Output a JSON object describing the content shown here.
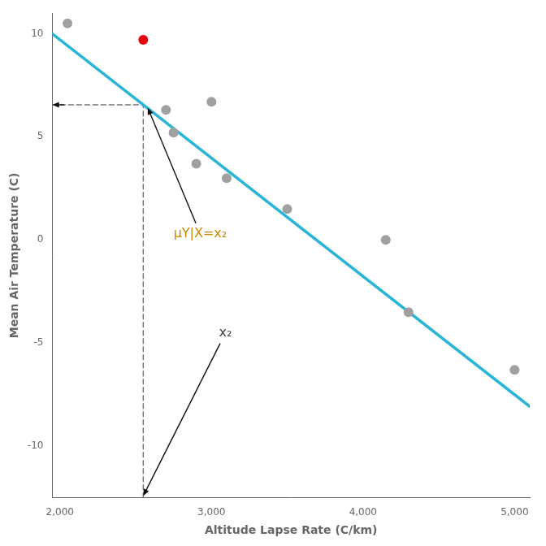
{
  "chart_data": {
    "type": "scatter",
    "xlabel": "Altitude Lapse Rate (C/km)",
    "ylabel": "Mean Air Temperature (C)",
    "xlim": [
      1950,
      5100
    ],
    "ylim": [
      -12.5,
      11.0
    ],
    "xticks": [
      2000,
      3000,
      4000,
      5000
    ],
    "yticks": [
      -10,
      -5,
      0,
      5,
      10
    ],
    "grid": false,
    "series": [
      {
        "type": "scatter",
        "x": [
          2050,
          2550,
          2700,
          2750,
          2900,
          3000,
          3100,
          3500,
          4150,
          4300,
          5000
        ],
        "values": [
          10.5,
          9.7,
          6.3,
          5.2,
          3.7,
          6.7,
          3.0,
          1.5,
          0.0,
          -3.5,
          -6.3
        ],
        "colors": [
          "#a0a0a0",
          "#e8000d",
          "#a0a0a0",
          "#a0a0a0",
          "#a0a0a0",
          "#a0a0a0",
          "#a0a0a0",
          "#a0a0a0",
          "#a0a0a0",
          "#a0a0a0",
          "#a0a0a0"
        ]
      },
      {
        "type": "line",
        "line_style": "solid",
        "color": "#29b6d6",
        "x": [
          1950,
          5100
        ],
        "values": [
          9.99065,
          -8.0683
        ]
      },
      {
        "type": "line",
        "line_style": "dashed",
        "color": "#777777",
        "x": [
          2550,
          2550
        ],
        "values": [
          -12.5,
          6.55085
        ]
      },
      {
        "type": "line",
        "line_style": "dashed",
        "color": "#777777",
        "x": [
          1950,
          2550
        ],
        "values": [
          6.55085,
          6.55085
        ]
      }
    ],
    "annotations": [
      {
        "text": "μY|X=x₂",
        "x": 2750,
        "y": 0.3,
        "color": "#cc8800",
        "arrow_x": 2580,
        "arrow_y": 6.40085,
        "arrow_color": "#111111"
      },
      {
        "text": "x₂",
        "x": 3050,
        "y": -4.5,
        "color": "#444444",
        "arrow_x": 2550,
        "arrow_y": -12.4,
        "arrow_color": "#111111"
      }
    ],
    "arrows": [
      {
        "x": 2030,
        "y": 6.55085,
        "to_x": 1950,
        "to_y": 6.55085,
        "color": "#111111"
      }
    ]
  }
}
